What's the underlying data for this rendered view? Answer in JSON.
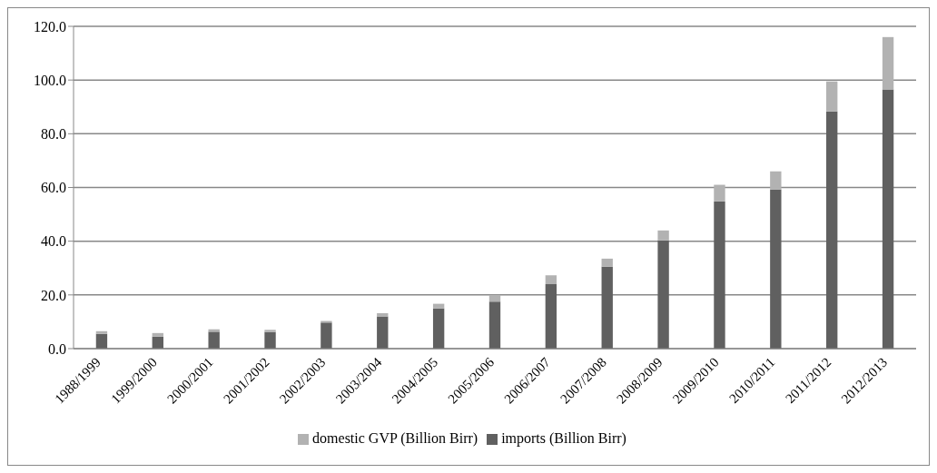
{
  "chart_data": {
    "type": "bar",
    "stacked": true,
    "categories": [
      "1988/1999",
      "1999/2000",
      "2000/2001",
      "2001/2002",
      "2002/2003",
      "2003/2004",
      "2004/2005",
      "2005/2006",
      "2006/2007",
      "2007/2008",
      "2008/2009",
      "2009/2010",
      "2010/2011",
      "2011/2012",
      "2012/2013"
    ],
    "series": [
      {
        "name": "imports (Billion Birr)",
        "color": "#606060",
        "values": [
          5.5,
          4.5,
          6.3,
          6.2,
          9.7,
          12.0,
          15.0,
          17.5,
          24.0,
          30.5,
          40.3,
          54.8,
          59.2,
          88.3,
          96.5
        ]
      },
      {
        "name": "domestic GVP (Billion Birr)",
        "color": "#b2b2b2",
        "values": [
          1.0,
          1.3,
          0.9,
          0.8,
          0.6,
          1.2,
          1.7,
          2.5,
          3.3,
          3.0,
          3.7,
          6.2,
          6.8,
          11.2,
          19.5
        ]
      }
    ],
    "ylim": [
      0,
      120
    ],
    "yticks": [
      {
        "value": 0,
        "label": "0.0"
      },
      {
        "value": 20,
        "label": "20.0"
      },
      {
        "value": 40,
        "label": "40.0"
      },
      {
        "value": 60,
        "label": "60.0"
      },
      {
        "value": 80,
        "label": "80.0"
      },
      {
        "value": 100,
        "label": "100.0"
      },
      {
        "value": 120,
        "label": "120.0"
      }
    ],
    "grid": "y",
    "legend": "bottom"
  }
}
